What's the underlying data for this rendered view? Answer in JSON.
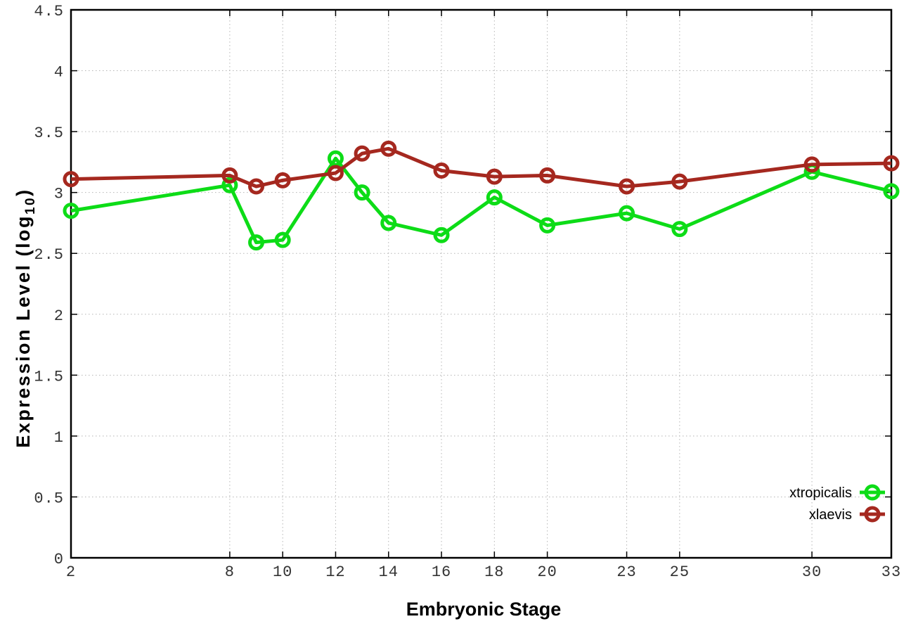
{
  "chart_data": {
    "type": "line",
    "title": "",
    "xlabel": "Embryonic Stage",
    "ylabel": {
      "pre": "Expression Level (log",
      "sub": "10",
      "post": ")"
    },
    "x": [
      2,
      8,
      9,
      10,
      12,
      13,
      14,
      16,
      18,
      20,
      23,
      25,
      30,
      33
    ],
    "xticks": [
      2,
      8,
      10,
      12,
      14,
      16,
      18,
      20,
      23,
      25,
      30,
      33
    ],
    "yticks": [
      "0",
      "0.5",
      "1",
      "1.5",
      "2",
      "2.5",
      "3",
      "3.5",
      "4",
      "4.5"
    ],
    "xlim": [
      2,
      33
    ],
    "ylim": [
      0,
      4.5
    ],
    "grid": true,
    "grid_style": "dotted",
    "legend_position": "bottom-right-inside",
    "marker": "open-circle",
    "background_color": "#ffffff",
    "grid_color": "#b5b5b5",
    "border_color": "#000000",
    "tick_label_color": "#333333",
    "series": [
      {
        "name": "xtropicalis",
        "color": "#0ddc17",
        "values": [
          2.85,
          3.06,
          2.59,
          2.61,
          3.28,
          3.0,
          2.75,
          2.65,
          2.96,
          2.73,
          2.83,
          2.7,
          3.17,
          3.01
        ]
      },
      {
        "name": "xlaevis",
        "color": "#a5281f",
        "values": [
          3.11,
          3.14,
          3.05,
          3.1,
          3.16,
          3.32,
          3.36,
          3.18,
          3.13,
          3.14,
          3.05,
          3.09,
          3.23,
          3.24
        ]
      }
    ]
  }
}
